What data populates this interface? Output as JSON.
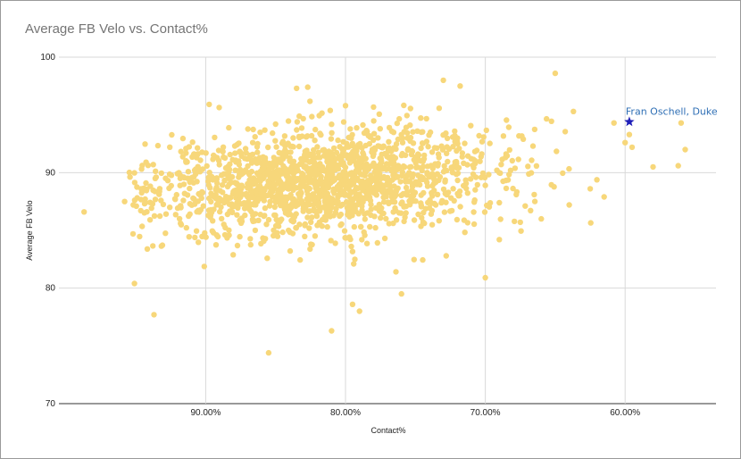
{
  "chart_data": {
    "type": "scatter",
    "title": "Average FB Velo vs. Contact%",
    "xlabel": "Contact%",
    "ylabel": "Average FB Velo",
    "x_reversed": true,
    "xlim": [
      1.005,
      0.535
    ],
    "ylim": [
      70,
      100
    ],
    "x_ticks": [
      0.9,
      0.8,
      0.7,
      0.6
    ],
    "x_tick_labels": [
      "90.00%",
      "80.00%",
      "70.00%",
      "60.00%"
    ],
    "y_ticks": [
      70,
      80,
      90,
      100
    ],
    "y_tick_labels": [
      "70",
      "80",
      "90",
      "100"
    ],
    "grid": true,
    "legend": "none",
    "series_color": "#f7d77a",
    "highlight_color": "#1f1fb8",
    "cloud": {
      "n_points": 1700,
      "x_mean": 0.815,
      "x_sd": 0.062,
      "y_mean": 89.2,
      "y_sd": 2.2,
      "trend_per_0.1_contact": 1.9
    },
    "outliers": [
      {
        "x": 0.987,
        "y": 86.6
      },
      {
        "x": 0.958,
        "y": 87.5
      },
      {
        "x": 0.952,
        "y": 84.7
      },
      {
        "x": 0.951,
        "y": 80.4
      },
      {
        "x": 0.937,
        "y": 77.7
      },
      {
        "x": 0.938,
        "y": 87.3
      },
      {
        "x": 0.855,
        "y": 74.4
      },
      {
        "x": 0.81,
        "y": 76.3
      },
      {
        "x": 0.795,
        "y": 78.6
      },
      {
        "x": 0.79,
        "y": 78.0
      },
      {
        "x": 0.76,
        "y": 79.5
      },
      {
        "x": 0.728,
        "y": 82.8
      },
      {
        "x": 0.7,
        "y": 80.9
      },
      {
        "x": 0.69,
        "y": 84.2
      },
      {
        "x": 0.73,
        "y": 98.0
      },
      {
        "x": 0.718,
        "y": 97.5
      },
      {
        "x": 0.65,
        "y": 98.6
      },
      {
        "x": 0.637,
        "y": 95.3
      },
      {
        "x": 0.608,
        "y": 94.3
      },
      {
        "x": 0.6,
        "y": 92.6
      },
      {
        "x": 0.597,
        "y": 93.3
      },
      {
        "x": 0.595,
        "y": 92.2
      },
      {
        "x": 0.58,
        "y": 90.5
      },
      {
        "x": 0.562,
        "y": 90.6
      },
      {
        "x": 0.56,
        "y": 94.3
      },
      {
        "x": 0.557,
        "y": 92.0
      },
      {
        "x": 0.615,
        "y": 87.9
      },
      {
        "x": 0.625,
        "y": 88.6
      },
      {
        "x": 0.64,
        "y": 87.2
      },
      {
        "x": 0.665,
        "y": 88.1
      },
      {
        "x": 0.66,
        "y": 86.0
      },
      {
        "x": 0.675,
        "y": 85.7
      },
      {
        "x": 0.85,
        "y": 94.2
      },
      {
        "x": 0.835,
        "y": 97.3
      },
      {
        "x": 0.827,
        "y": 97.4
      },
      {
        "x": 0.8,
        "y": 95.8
      }
    ],
    "highlight": {
      "x": 0.597,
      "y": 94.4,
      "label": "Fran Oschell, Duke",
      "marker": "star"
    }
  }
}
